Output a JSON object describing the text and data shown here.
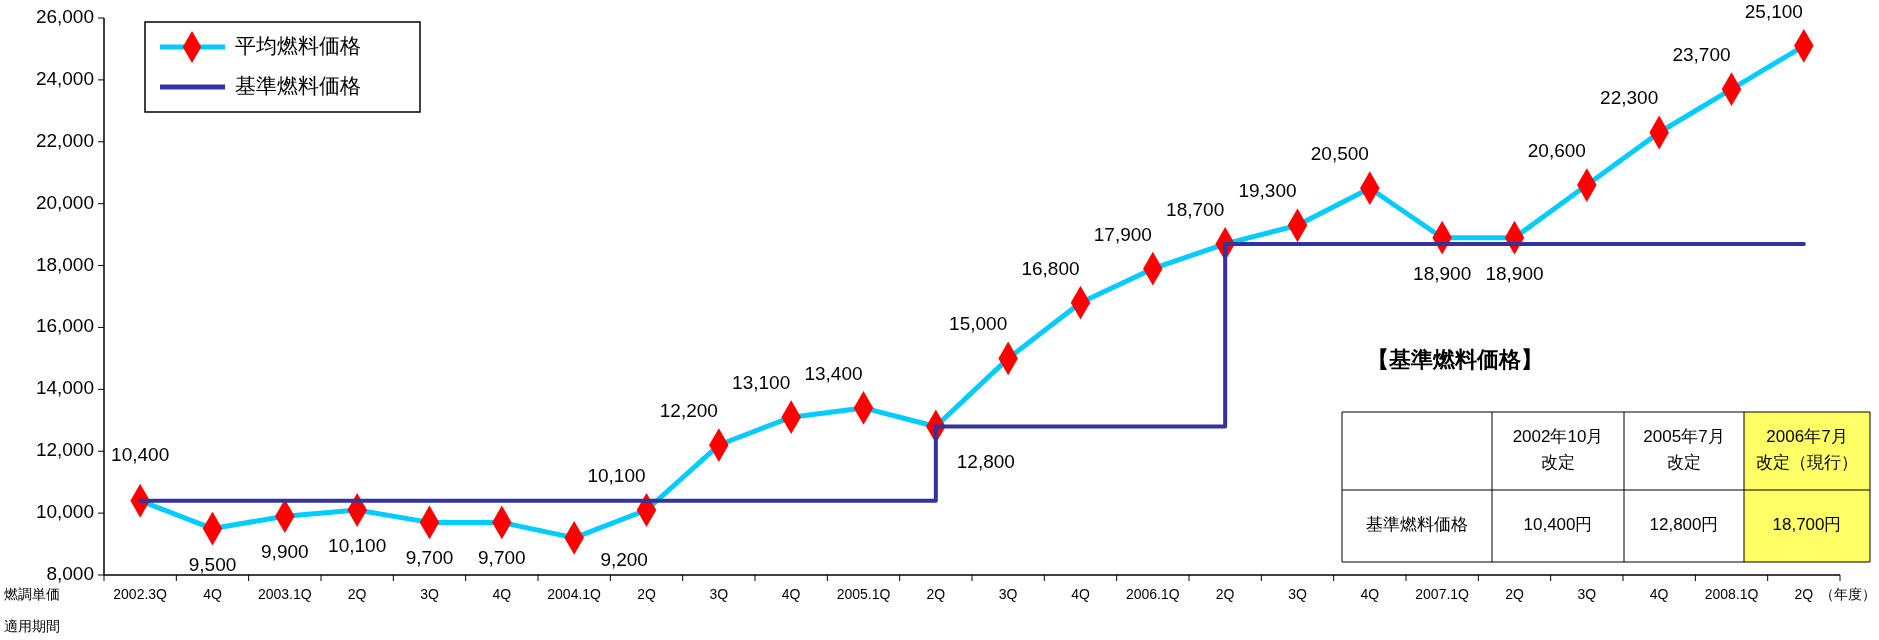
{
  "chart_data": {
    "type": "line",
    "categories": [
      "2002.3Q",
      "4Q",
      "2003.1Q",
      "2Q",
      "3Q",
      "4Q",
      "2004.1Q",
      "2Q",
      "3Q",
      "4Q",
      "2005.1Q",
      "2Q",
      "3Q",
      "4Q",
      "2006.1Q",
      "2Q",
      "3Q",
      "4Q",
      "2007.1Q",
      "2Q",
      "3Q",
      "4Q",
      "2008.1Q",
      "2Q"
    ],
    "xlabel": "（年度）",
    "ylim": [
      8000,
      26000
    ],
    "yticks": [
      {
        "value": 8000,
        "label": "8,000"
      },
      {
        "value": 10000,
        "label": "10,000"
      },
      {
        "value": 12000,
        "label": "12,000"
      },
      {
        "value": 14000,
        "label": "14,000"
      },
      {
        "value": 16000,
        "label": "16,000"
      },
      {
        "value": 18000,
        "label": "18,000"
      },
      {
        "value": 20000,
        "label": "20,000"
      },
      {
        "value": 22000,
        "label": "22,000"
      },
      {
        "value": 24000,
        "label": "24,000"
      },
      {
        "value": 26000,
        "label": "26,000"
      }
    ],
    "grid": false,
    "legend": "top left",
    "series": [
      {
        "name": "平均燃料価格",
        "color": "#00ccff",
        "values": [
          10400,
          9500,
          9900,
          10100,
          9700,
          9700,
          9200,
          10100,
          12200,
          13100,
          13400,
          12800,
          15000,
          16800,
          17900,
          18700,
          19300,
          20500,
          18900,
          18900,
          20600,
          22300,
          23700,
          25100
        ],
        "value_labels": [
          "10,400",
          "9,500",
          "9,900",
          "10,100",
          "9,700",
          "9,700",
          "9,200",
          "10,100",
          "12,200",
          "13,100",
          "13,400",
          "12,800",
          "15,000",
          "16,800",
          "17,900",
          "18,700",
          "19,300",
          "20,500",
          "18,900",
          "18,900",
          "20,600",
          "22,300",
          "23,700",
          "25,100"
        ]
      },
      {
        "type": "scatter",
        "color": "#ff0000",
        "marker": "diamond",
        "values": [
          10400,
          9500,
          9900,
          10100,
          9700,
          9700,
          9200,
          10100,
          12200,
          13100,
          13400,
          12800,
          15000,
          16800,
          17900,
          18700,
          19300,
          20500,
          18900,
          18900,
          20600,
          22300,
          23700,
          25100
        ]
      },
      {
        "name": "基準燃料価格",
        "color": "#333399",
        "type": "step",
        "values": [
          10400,
          10400,
          10400,
          10400,
          10400,
          10400,
          10400,
          10400,
          10400,
          10400,
          10400,
          12800,
          12800,
          12800,
          12800,
          18700,
          18700,
          18700,
          18700,
          18700,
          18700,
          18700,
          18700,
          18700
        ]
      }
    ],
    "annotations": [
      "燃調単価",
      "適用期間",
      "【基準燃料価格】",
      "2002年10月改定",
      "2005年7月改定",
      "2006年7月改定（現行）",
      "基準燃料価格",
      "10,400円",
      "12,800円",
      "18,700円"
    ]
  }
}
